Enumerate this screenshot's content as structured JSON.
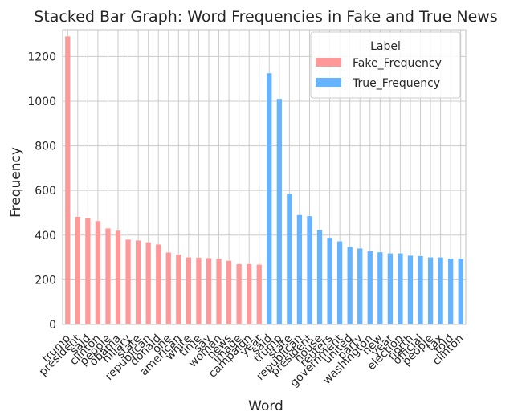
{
  "chart_data": {
    "type": "bar",
    "title": "Stacked Bar Graph: Word Frequencies in Fake and True News",
    "xlabel": "Word",
    "ylabel": "Frequency",
    "ylim": [
      0,
      1320
    ],
    "yticks": [
      0,
      200,
      400,
      600,
      800,
      1000,
      1200
    ],
    "grid": true,
    "legend": {
      "title": "Label",
      "placement": "top-right"
    },
    "categories": [
      "trump",
      "president",
      "said",
      "clinton",
      "people",
      "obama",
      "hillary",
      "state",
      "republican",
      "donald",
      "one",
      "american",
      "white",
      "time",
      "say",
      "woman",
      "news",
      "image",
      "campaign",
      "year",
      "said",
      "trump",
      "state",
      "republican",
      "president",
      "house",
      "reuters",
      "government",
      "united",
      "party",
      "washington",
      "new",
      "year",
      "election",
      "north",
      "official",
      "people",
      "tax",
      "told",
      "clinton"
    ],
    "series": [
      {
        "name": "Fake_Frequency",
        "color": "#ff9999",
        "values": [
          1290,
          482,
          475,
          463,
          430,
          420,
          380,
          376,
          368,
          358,
          322,
          313,
          300,
          299,
          297,
          294,
          285,
          270,
          270,
          268,
          0,
          0,
          0,
          0,
          0,
          0,
          0,
          0,
          0,
          0,
          0,
          0,
          0,
          0,
          0,
          0,
          0,
          0,
          0,
          0
        ]
      },
      {
        "name": "True_Frequency",
        "color": "#66b3ff",
        "values": [
          0,
          0,
          0,
          0,
          0,
          0,
          0,
          0,
          0,
          0,
          0,
          0,
          0,
          0,
          0,
          0,
          0,
          0,
          0,
          0,
          1125,
          1010,
          585,
          490,
          485,
          423,
          388,
          372,
          348,
          340,
          328,
          323,
          318,
          318,
          308,
          306,
          300,
          300,
          295,
          295
        ]
      }
    ]
  }
}
